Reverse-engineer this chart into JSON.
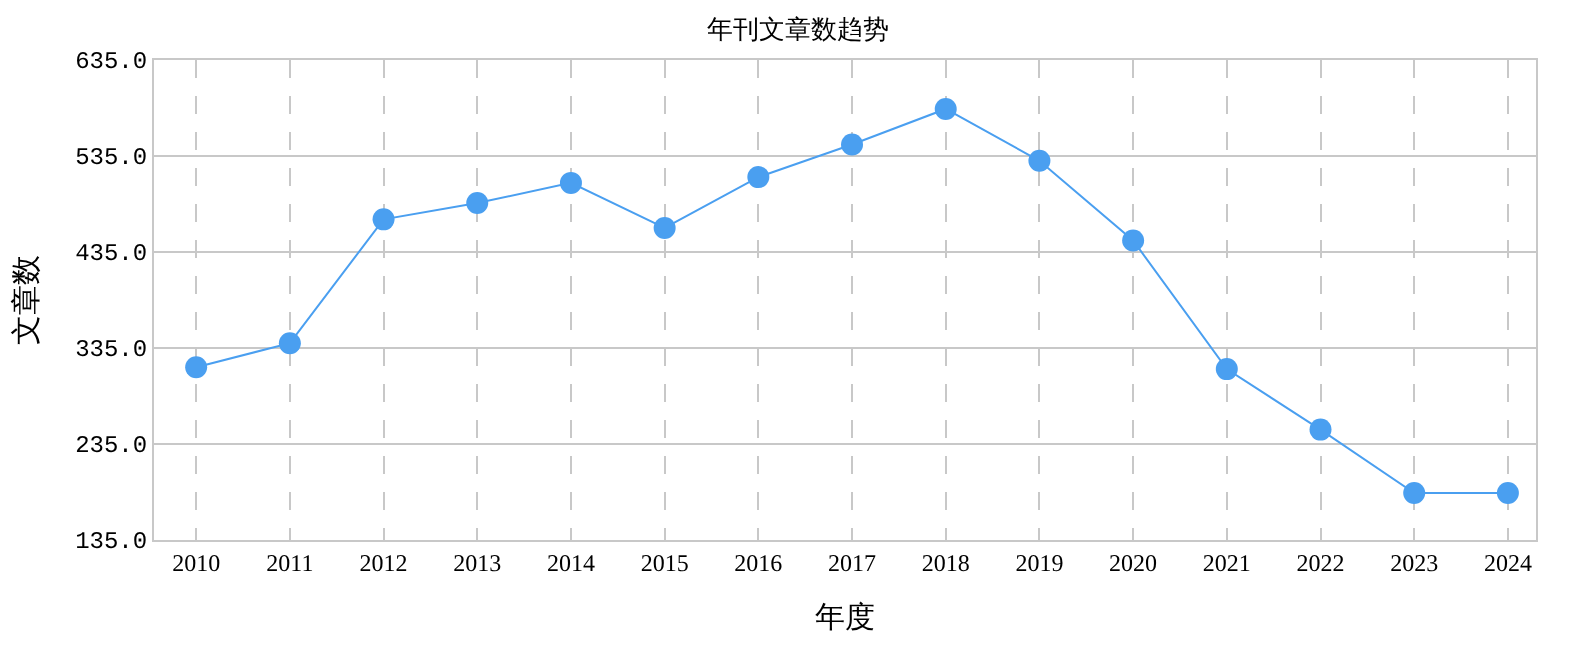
{
  "chart_data": {
    "type": "line",
    "title": "年刊文章数趋势",
    "xlabel": "年度",
    "ylabel": "文章数",
    "categories": [
      "2010",
      "2011",
      "2012",
      "2013",
      "2014",
      "2015",
      "2016",
      "2017",
      "2018",
      "2019",
      "2020",
      "2021",
      "2022",
      "2023",
      "2024"
    ],
    "series": [
      {
        "color": "#4a9ff0",
        "values": [
          315,
          340,
          469,
          486,
          507,
          460,
          513,
          547,
          584,
          530,
          447,
          313,
          250,
          184,
          184
        ]
      }
    ],
    "ylim": [
      135,
      635
    ],
    "yticks": [
      {
        "value": 135,
        "label": "135.0"
      },
      {
        "value": 235,
        "label": "235.0"
      },
      {
        "value": 335,
        "label": "335.0"
      },
      {
        "value": 435,
        "label": "435.0"
      },
      {
        "value": 535,
        "label": "535.0"
      },
      {
        "value": 635,
        "label": "635.0"
      }
    ],
    "grid": true,
    "marker": "circle",
    "line_style": "solid",
    "legend": false
  }
}
